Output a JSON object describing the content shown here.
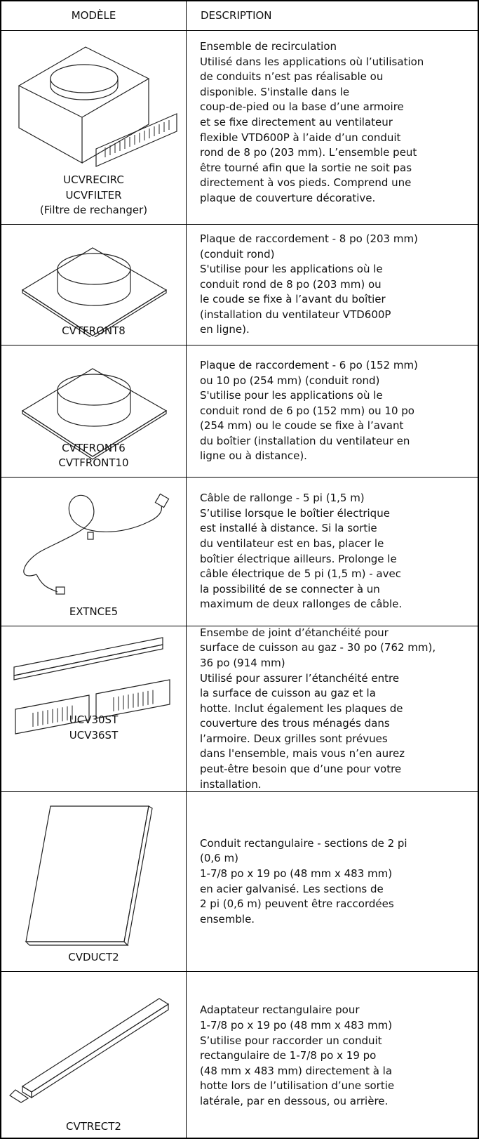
{
  "header": {
    "model": "MODÈLE",
    "description": "DESCRIPTION"
  },
  "rows": [
    {
      "model": [
        "UCVRECIRC",
        "UCVFILTER",
        "(Filtre de rechanger)"
      ],
      "description": [
        "Ensemble de recirculation",
        "Utilisé dans les applications où l’utilisation",
        "de conduits n’est pas réalisable ou",
        "disponible. S'installe dans le",
        "coup-de-pied ou la base d’une armoire",
        "et se fixe directement au ventilateur",
        "flexible VTD600P à l’aide d’un conduit",
        "rond de 8 po (203 mm). L’ensemble peut",
        "être tourné afin que la sortie ne soit pas",
        "directement à vos pieds. Comprend une",
        "plaque de couverture décorative."
      ]
    },
    {
      "model": [
        "CVTFRONT8"
      ],
      "description": [
        "Plaque de raccordement - 8 po (203 mm)",
        "(conduit rond)",
        "S'utilise pour les applications où le",
        "conduit rond de 8 po (203 mm) ou",
        "le coude se fixe à l’avant du boîtier",
        "(installation du ventilateur VTD600P",
        "en ligne)."
      ]
    },
    {
      "model": [
        "CVTFRONT6",
        "CVTFRONT10"
      ],
      "description": [
        "Plaque de raccordement - 6 po (152 mm)",
        "ou 10 po (254 mm) (conduit rond)",
        "S'utilise pour les applications où le",
        "conduit rond de 6 po (152 mm) ou 10 po",
        "(254 mm) ou le coude se fixe à l’avant",
        "du boîtier (installation du ventilateur en",
        "ligne ou à distance)."
      ]
    },
    {
      "model": [
        "EXTNCE5"
      ],
      "description": [
        "Câble de rallonge - 5 pi (1,5 m)",
        "S’utilise lorsque le boîtier électrique",
        "est installé à distance. Si la sortie",
        "du ventilateur est en bas, placer le",
        "boîtier électrique ailleurs. Prolonge le",
        "câble électrique de 5 pi (1,5 m) - avec",
        "la possibilité de se connecter à un",
        "maximum de deux rallonges de câble."
      ]
    },
    {
      "model": [
        "UCV30ST",
        "UCV36ST"
      ],
      "description": [
        "Ensembe de joint d’étanchéité pour",
        "surface de cuisson au gaz - 30 po (762 mm),",
        "36 po (914 mm)",
        "Utilisé pour assurer l’étanchéité entre",
        "la surface de cuisson au gaz et la",
        "hotte. Inclut également les plaques de",
        "couverture des trous ménagés dans",
        "l’armoire. Deux grilles sont prévues",
        "dans l'ensemble, mais vous n’en aurez",
        "peut-être besoin que d’une pour votre",
        "installation."
      ]
    },
    {
      "model": [
        "CVDUCT2"
      ],
      "description": [
        "Conduit rectangulaire - sections de 2 pi",
        "(0,6 m)",
        "1-7/8 po x 19 po (48 mm x 483 mm)",
        "en acier galvanisé. Les sections de",
        "2 pi (0,6 m) peuvent être raccordées",
        "ensemble."
      ]
    },
    {
      "model": [
        "CVTRECT2"
      ],
      "description": [
        "Adaptateur rectangulaire pour",
        "1-7/8 po x 19 po (48 mm x 483 mm)",
        "S’utilise pour raccorder un conduit",
        "rectangulaire de 1-7/8 po x 19 po",
        "(48 mm x 483 mm) directement à la",
        "hotte lors de l’utilisation d’une sortie",
        "latérale, par en dessous, ou arrière."
      ]
    }
  ]
}
